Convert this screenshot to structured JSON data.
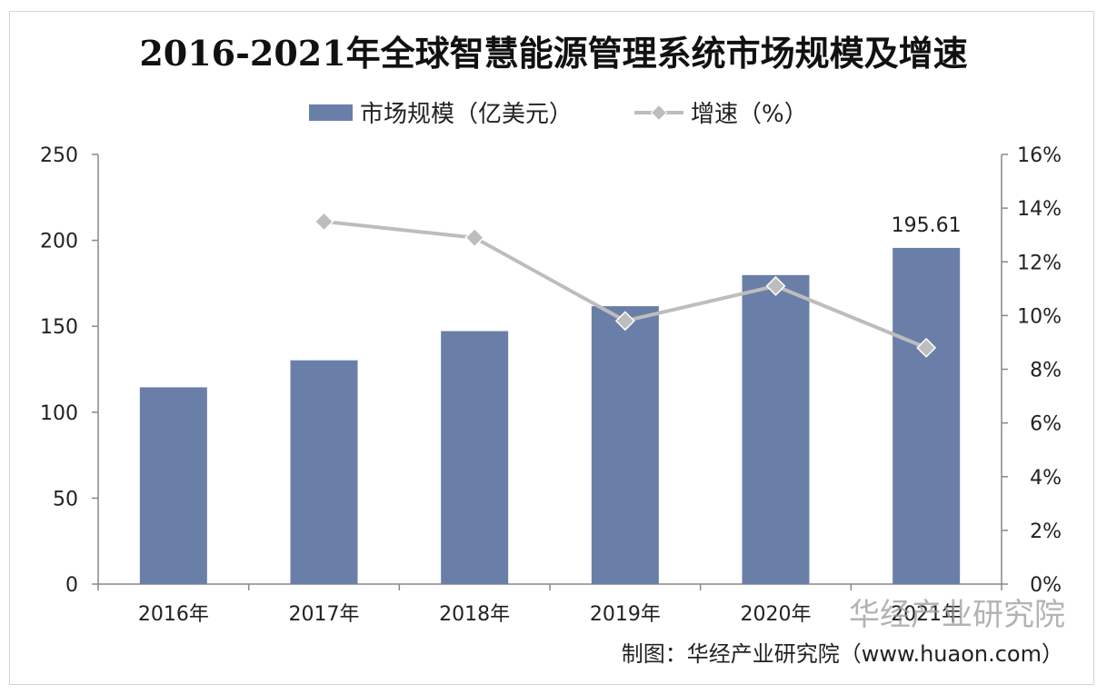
{
  "chart_data": {
    "type": "bar",
    "title": "2016-2021年全球智慧能源管理系统市场规模及增速",
    "categories": [
      "2016年",
      "2017年",
      "2018年",
      "2019年",
      "2020年",
      "2021年"
    ],
    "series": [
      {
        "name": "市场规模（亿美元）",
        "type": "bar",
        "axis": "left",
        "color": "#6a7fa8",
        "values": [
          114.5,
          130.2,
          147.2,
          161.7,
          179.8,
          195.61
        ]
      },
      {
        "name": "增速（%）",
        "type": "line",
        "axis": "right",
        "color": "#bdbdbd",
        "values": [
          null,
          13.5,
          12.9,
          9.8,
          11.1,
          8.8
        ]
      }
    ],
    "data_labels": [
      {
        "category": "2021年",
        "series": "市场规模（亿美元）",
        "text": "195.61"
      }
    ],
    "y_left": {
      "min": 0,
      "max": 250,
      "ticks": [
        "0",
        "50",
        "100",
        "150",
        "200",
        "250"
      ]
    },
    "y_right": {
      "min": 0,
      "max": 16,
      "ticks": [
        "0%",
        "2%",
        "4%",
        "6%",
        "8%",
        "10%",
        "12%",
        "14%",
        "16%"
      ]
    },
    "legend_position": "top",
    "grid": false
  },
  "credit": "制图：华经产业研究院（www.huaon.com）",
  "watermark": "华经产业研究院"
}
